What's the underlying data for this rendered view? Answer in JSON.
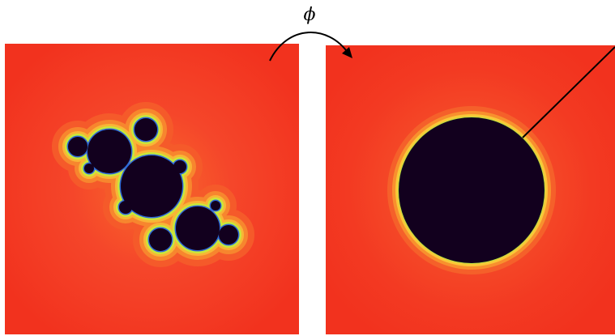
{
  "arrow": {
    "label": "ϕ"
  }
}
